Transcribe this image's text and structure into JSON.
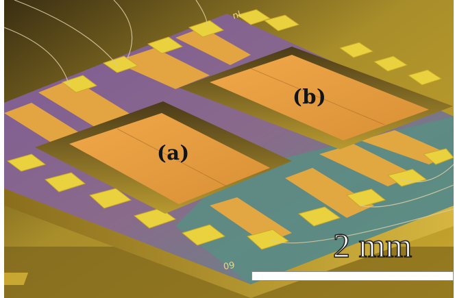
{
  "labels": {
    "device_a": "(a)",
    "device_b": "(b)",
    "chip_mark_top": "nl",
    "chip_mark_bottom": "09"
  },
  "scale_bar": {
    "text": "2 mm"
  },
  "colors": {
    "gold": "#e6c02e",
    "purple": "#8a5f9e",
    "teal": "#5f8f8a",
    "plate": "#e8a23c",
    "substrate": "#c4a126"
  }
}
